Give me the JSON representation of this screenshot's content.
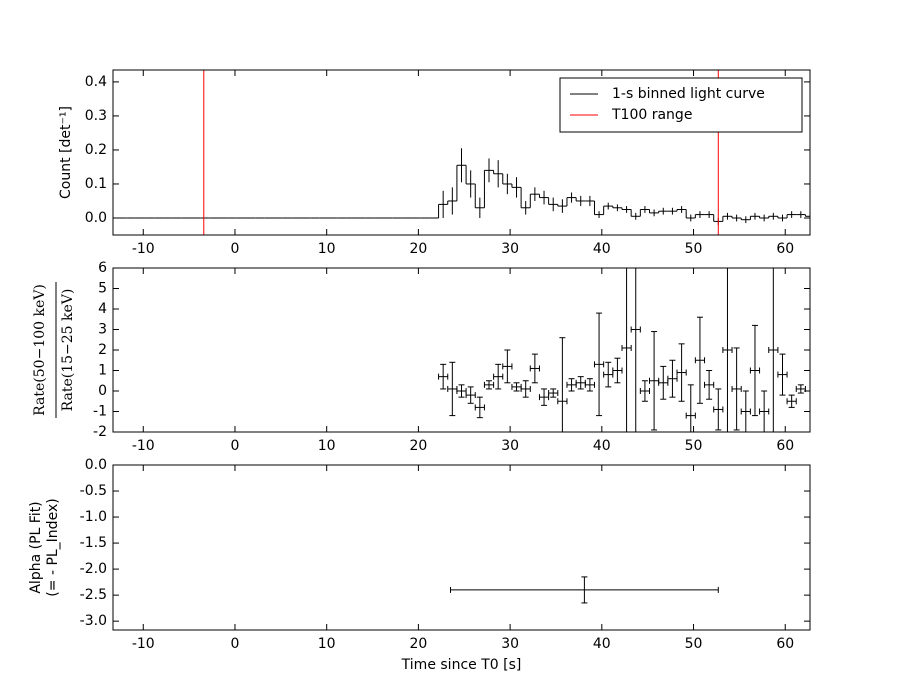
{
  "chart_data": [
    {
      "type": "step",
      "ylabel": "Count [det⁻¹]",
      "xlim": [
        -13.3,
        62.7
      ],
      "xticks": [
        -10,
        0,
        10,
        20,
        30,
        40,
        50,
        60
      ],
      "ylim": [
        -0.05,
        0.435
      ],
      "yticks": [
        {
          "value": 0,
          "label": "0.0"
        },
        0.1,
        0.2,
        0.3,
        0.4
      ],
      "legend": "upper right",
      "series": [
        {
          "name": "1-s binned light curve",
          "color": "#000000",
          "binwidth": 1,
          "x": [
            -13.3,
            -12.3,
            -11.3,
            -10.3,
            -9.3,
            -8.3,
            -7.3,
            -6.3,
            -5.3,
            -4.3,
            -3.3,
            -2.3,
            -1.3,
            -0.3,
            0.7,
            1.7,
            2.7,
            3.7,
            4.7,
            5.7,
            6.7,
            7.7,
            8.7,
            9.7,
            10.7,
            11.7,
            12.7,
            13.7,
            14.7,
            15.7,
            16.7,
            17.7,
            18.7,
            19.7,
            20.7,
            21.7,
            22.7,
            23.7,
            24.7,
            25.7,
            26.7,
            27.7,
            28.7,
            29.7,
            30.7,
            31.7,
            32.7,
            33.7,
            34.7,
            35.7,
            36.7,
            37.7,
            38.7,
            39.7,
            40.7,
            41.7,
            42.7,
            43.7,
            44.7,
            45.7,
            46.7,
            47.7,
            48.7,
            49.7,
            50.7,
            51.7,
            52.7,
            53.7,
            54.7,
            55.7,
            56.7,
            57.7,
            58.7,
            59.7,
            60.7,
            61.7,
            62.7
          ],
          "values": [
            0,
            0,
            0,
            0,
            0,
            0,
            0,
            0,
            0,
            0,
            0,
            0,
            0,
            0,
            0,
            0,
            0,
            0,
            0,
            0,
            0,
            0,
            0,
            0,
            0,
            0,
            0,
            0,
            0,
            0,
            0,
            0,
            0,
            0,
            0,
            0,
            0.04,
            0.05,
            0.155,
            0.1,
            0.03,
            0.14,
            0.13,
            0.1,
            0.09,
            0.03,
            0.07,
            0.06,
            0.04,
            0.035,
            0.06,
            0.05,
            0.05,
            0.01,
            0.035,
            0.03,
            0.025,
            0.005,
            0.025,
            0.015,
            0.02,
            0.02,
            0.025,
            0.0,
            0.01,
            0.01,
            -0.01,
            0.005,
            0.0,
            -0.005,
            0.005,
            0.0,
            0.005,
            0.0,
            0.01,
            0.01,
            0.005
          ],
          "errors": [
            0,
            0,
            0,
            0,
            0,
            0,
            0,
            0,
            0,
            0,
            0,
            0,
            0,
            0,
            0,
            0,
            0,
            0,
            0,
            0,
            0,
            0,
            0,
            0,
            0,
            0,
            0,
            0,
            0,
            0,
            0,
            0,
            0,
            0,
            0,
            0,
            0.04,
            0.04,
            0.05,
            0.04,
            0.03,
            0.035,
            0.04,
            0.03,
            0.03,
            0.02,
            0.02,
            0.02,
            0.02,
            0.02,
            0.015,
            0.015,
            0.015,
            0.01,
            0.01,
            0.01,
            0.01,
            0.01,
            0.01,
            0.01,
            0.01,
            0.01,
            0.01,
            0.01,
            0.01,
            0.01,
            0.01,
            0.01,
            0.01,
            0.01,
            0.01,
            0.01,
            0.01,
            0.01,
            0.01,
            0.01,
            0.01
          ]
        }
      ],
      "vlines": {
        "name": "T100 range",
        "color": "#ff0000",
        "x": [
          -3.4,
          52.7
        ]
      }
    },
    {
      "type": "scatter",
      "ylabel_fraction": [
        "Rate(50−100 keV)",
        "Rate(15−25 keV)"
      ],
      "xlim": [
        -13.3,
        62.7
      ],
      "xticks": [
        -10,
        0,
        10,
        20,
        30,
        40,
        50,
        60
      ],
      "ylim": [
        -2,
        6
      ],
      "yticks": [
        -2,
        -1,
        0,
        1,
        2,
        3,
        4,
        5,
        6
      ],
      "series": [
        {
          "color": "#000000",
          "xerr": 0.5,
          "x": [
            22.7,
            23.7,
            24.7,
            25.7,
            26.7,
            27.7,
            28.7,
            29.7,
            30.7,
            31.7,
            32.7,
            33.7,
            34.7,
            35.7,
            36.7,
            37.7,
            38.7,
            39.7,
            40.7,
            41.7,
            42.7,
            43.7,
            44.7,
            45.7,
            46.7,
            47.7,
            48.7,
            49.7,
            50.7,
            51.7,
            52.7,
            53.7,
            54.7,
            55.7,
            56.7,
            57.7,
            58.7,
            59.7,
            60.7,
            61.7
          ],
          "values": [
            0.7,
            0.1,
            0.0,
            -0.2,
            -0.8,
            0.3,
            0.7,
            1.2,
            0.2,
            0.1,
            1.1,
            -0.3,
            -0.1,
            -0.5,
            0.3,
            0.4,
            0.3,
            1.3,
            0.8,
            1.0,
            2.1,
            3.0,
            0.0,
            0.5,
            0.4,
            0.6,
            0.9,
            -1.2,
            1.5,
            0.3,
            -0.9,
            2.0,
            0.1,
            -1.0,
            1.0,
            -1.0,
            2.0,
            0.8,
            -0.5,
            0.1
          ],
          "errors": [
            0.6,
            1.3,
            0.3,
            0.4,
            0.5,
            0.2,
            0.6,
            0.8,
            0.2,
            0.4,
            0.7,
            0.4,
            0.2,
            3.1,
            0.3,
            0.3,
            0.3,
            2.5,
            0.6,
            0.6,
            5.0,
            6.0,
            0.5,
            2.4,
            0.8,
            0.9,
            1.4,
            1.5,
            2.1,
            0.7,
            1.0,
            5.0,
            2.0,
            1.0,
            2.2,
            1.0,
            5.0,
            1.0,
            0.3,
            0.2
          ]
        }
      ]
    },
    {
      "type": "scatter",
      "ylabel": [
        "Alpha (PL Fit)",
        "(= - PL_Index)"
      ],
      "xlabel": "Time since T0 [s]",
      "xlim": [
        -13.3,
        62.7
      ],
      "xticks": [
        -10,
        0,
        10,
        20,
        30,
        40,
        50,
        60
      ],
      "ylim": [
        -3.17,
        0
      ],
      "yticks": [
        {
          "value": -3,
          "label": "-3.0"
        },
        -2.5,
        {
          "value": -2,
          "label": "-2.0"
        },
        -1.5,
        {
          "value": -1,
          "label": "-1.0"
        },
        -0.5,
        {
          "value": 0,
          "label": "0.0"
        }
      ],
      "series": [
        {
          "color": "#000000",
          "x": [
            38.1
          ],
          "xerr": [
            14.6
          ],
          "values": [
            -2.4
          ],
          "errors": [
            0.25
          ]
        }
      ]
    }
  ]
}
